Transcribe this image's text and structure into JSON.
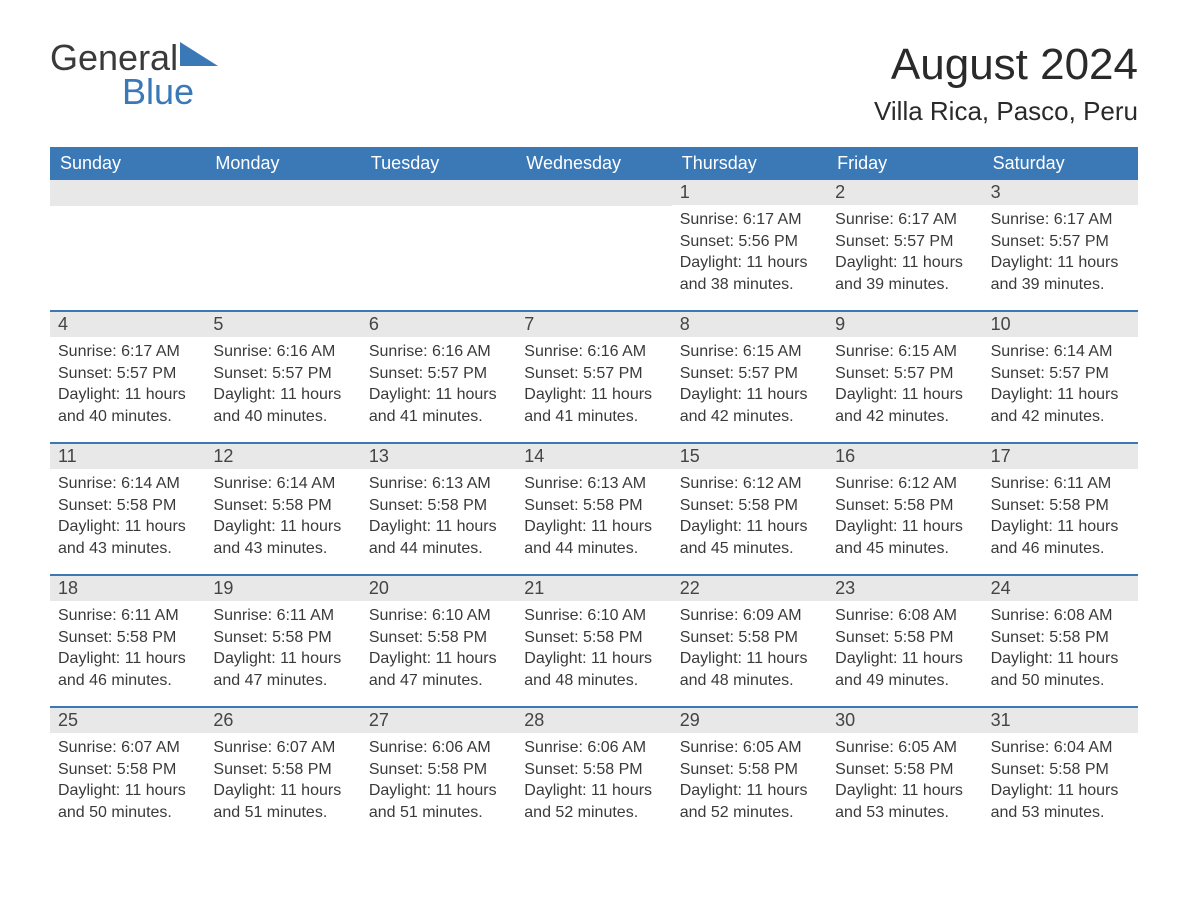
{
  "logo": {
    "text1": "General",
    "text2": "Blue"
  },
  "title": "August 2024",
  "location": "Villa Rica, Pasco, Peru",
  "colors": {
    "header_bg": "#3a78b6",
    "header_text": "#ffffff",
    "daynum_bg": "#e8e8e8",
    "border": "#3a78b6",
    "text": "#3a3a3a",
    "page_bg": "#ffffff"
  },
  "weekdays": [
    "Sunday",
    "Monday",
    "Tuesday",
    "Wednesday",
    "Thursday",
    "Friday",
    "Saturday"
  ],
  "weeks": [
    [
      {
        "empty": true
      },
      {
        "empty": true
      },
      {
        "empty": true
      },
      {
        "empty": true
      },
      {
        "day": "1",
        "sunrise": "Sunrise: 6:17 AM",
        "sunset": "Sunset: 5:56 PM",
        "day1": "Daylight: 11 hours",
        "day2": "and 38 minutes."
      },
      {
        "day": "2",
        "sunrise": "Sunrise: 6:17 AM",
        "sunset": "Sunset: 5:57 PM",
        "day1": "Daylight: 11 hours",
        "day2": "and 39 minutes."
      },
      {
        "day": "3",
        "sunrise": "Sunrise: 6:17 AM",
        "sunset": "Sunset: 5:57 PM",
        "day1": "Daylight: 11 hours",
        "day2": "and 39 minutes."
      }
    ],
    [
      {
        "day": "4",
        "sunrise": "Sunrise: 6:17 AM",
        "sunset": "Sunset: 5:57 PM",
        "day1": "Daylight: 11 hours",
        "day2": "and 40 minutes."
      },
      {
        "day": "5",
        "sunrise": "Sunrise: 6:16 AM",
        "sunset": "Sunset: 5:57 PM",
        "day1": "Daylight: 11 hours",
        "day2": "and 40 minutes."
      },
      {
        "day": "6",
        "sunrise": "Sunrise: 6:16 AM",
        "sunset": "Sunset: 5:57 PM",
        "day1": "Daylight: 11 hours",
        "day2": "and 41 minutes."
      },
      {
        "day": "7",
        "sunrise": "Sunrise: 6:16 AM",
        "sunset": "Sunset: 5:57 PM",
        "day1": "Daylight: 11 hours",
        "day2": "and 41 minutes."
      },
      {
        "day": "8",
        "sunrise": "Sunrise: 6:15 AM",
        "sunset": "Sunset: 5:57 PM",
        "day1": "Daylight: 11 hours",
        "day2": "and 42 minutes."
      },
      {
        "day": "9",
        "sunrise": "Sunrise: 6:15 AM",
        "sunset": "Sunset: 5:57 PM",
        "day1": "Daylight: 11 hours",
        "day2": "and 42 minutes."
      },
      {
        "day": "10",
        "sunrise": "Sunrise: 6:14 AM",
        "sunset": "Sunset: 5:57 PM",
        "day1": "Daylight: 11 hours",
        "day2": "and 42 minutes."
      }
    ],
    [
      {
        "day": "11",
        "sunrise": "Sunrise: 6:14 AM",
        "sunset": "Sunset: 5:58 PM",
        "day1": "Daylight: 11 hours",
        "day2": "and 43 minutes."
      },
      {
        "day": "12",
        "sunrise": "Sunrise: 6:14 AM",
        "sunset": "Sunset: 5:58 PM",
        "day1": "Daylight: 11 hours",
        "day2": "and 43 minutes."
      },
      {
        "day": "13",
        "sunrise": "Sunrise: 6:13 AM",
        "sunset": "Sunset: 5:58 PM",
        "day1": "Daylight: 11 hours",
        "day2": "and 44 minutes."
      },
      {
        "day": "14",
        "sunrise": "Sunrise: 6:13 AM",
        "sunset": "Sunset: 5:58 PM",
        "day1": "Daylight: 11 hours",
        "day2": "and 44 minutes."
      },
      {
        "day": "15",
        "sunrise": "Sunrise: 6:12 AM",
        "sunset": "Sunset: 5:58 PM",
        "day1": "Daylight: 11 hours",
        "day2": "and 45 minutes."
      },
      {
        "day": "16",
        "sunrise": "Sunrise: 6:12 AM",
        "sunset": "Sunset: 5:58 PM",
        "day1": "Daylight: 11 hours",
        "day2": "and 45 minutes."
      },
      {
        "day": "17",
        "sunrise": "Sunrise: 6:11 AM",
        "sunset": "Sunset: 5:58 PM",
        "day1": "Daylight: 11 hours",
        "day2": "and 46 minutes."
      }
    ],
    [
      {
        "day": "18",
        "sunrise": "Sunrise: 6:11 AM",
        "sunset": "Sunset: 5:58 PM",
        "day1": "Daylight: 11 hours",
        "day2": "and 46 minutes."
      },
      {
        "day": "19",
        "sunrise": "Sunrise: 6:11 AM",
        "sunset": "Sunset: 5:58 PM",
        "day1": "Daylight: 11 hours",
        "day2": "and 47 minutes."
      },
      {
        "day": "20",
        "sunrise": "Sunrise: 6:10 AM",
        "sunset": "Sunset: 5:58 PM",
        "day1": "Daylight: 11 hours",
        "day2": "and 47 minutes."
      },
      {
        "day": "21",
        "sunrise": "Sunrise: 6:10 AM",
        "sunset": "Sunset: 5:58 PM",
        "day1": "Daylight: 11 hours",
        "day2": "and 48 minutes."
      },
      {
        "day": "22",
        "sunrise": "Sunrise: 6:09 AM",
        "sunset": "Sunset: 5:58 PM",
        "day1": "Daylight: 11 hours",
        "day2": "and 48 minutes."
      },
      {
        "day": "23",
        "sunrise": "Sunrise: 6:08 AM",
        "sunset": "Sunset: 5:58 PM",
        "day1": "Daylight: 11 hours",
        "day2": "and 49 minutes."
      },
      {
        "day": "24",
        "sunrise": "Sunrise: 6:08 AM",
        "sunset": "Sunset: 5:58 PM",
        "day1": "Daylight: 11 hours",
        "day2": "and 50 minutes."
      }
    ],
    [
      {
        "day": "25",
        "sunrise": "Sunrise: 6:07 AM",
        "sunset": "Sunset: 5:58 PM",
        "day1": "Daylight: 11 hours",
        "day2": "and 50 minutes."
      },
      {
        "day": "26",
        "sunrise": "Sunrise: 6:07 AM",
        "sunset": "Sunset: 5:58 PM",
        "day1": "Daylight: 11 hours",
        "day2": "and 51 minutes."
      },
      {
        "day": "27",
        "sunrise": "Sunrise: 6:06 AM",
        "sunset": "Sunset: 5:58 PM",
        "day1": "Daylight: 11 hours",
        "day2": "and 51 minutes."
      },
      {
        "day": "28",
        "sunrise": "Sunrise: 6:06 AM",
        "sunset": "Sunset: 5:58 PM",
        "day1": "Daylight: 11 hours",
        "day2": "and 52 minutes."
      },
      {
        "day": "29",
        "sunrise": "Sunrise: 6:05 AM",
        "sunset": "Sunset: 5:58 PM",
        "day1": "Daylight: 11 hours",
        "day2": "and 52 minutes."
      },
      {
        "day": "30",
        "sunrise": "Sunrise: 6:05 AM",
        "sunset": "Sunset: 5:58 PM",
        "day1": "Daylight: 11 hours",
        "day2": "and 53 minutes."
      },
      {
        "day": "31",
        "sunrise": "Sunrise: 6:04 AM",
        "sunset": "Sunset: 5:58 PM",
        "day1": "Daylight: 11 hours",
        "day2": "and 53 minutes."
      }
    ]
  ]
}
